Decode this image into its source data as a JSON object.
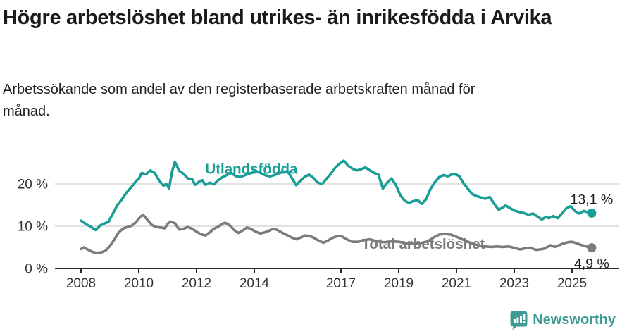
{
  "header": {
    "title": "Högre arbetslöshet bland utrikes- än inrikesfödda i Arvika",
    "subtitle": "Arbetssökande som andel av den registerbaserade arbetskraften månad för månad."
  },
  "colors": {
    "foreign_born_line": "#199E96",
    "total_line": "#7A7B7D",
    "gridline": "#D9D9D9",
    "axis": "#2B2B2B",
    "axis_text": "#333333",
    "value_label_text": "#1A1A1A",
    "brand_teal": "#3F9A94"
  },
  "chart_data": {
    "type": "line",
    "title": "",
    "xlabel": "",
    "ylabel": "",
    "x_axis": {
      "ticks": [
        2008,
        2010,
        2012,
        2014,
        2017,
        2019,
        2021,
        2023,
        2025
      ],
      "range": [
        2007.1,
        2026.6
      ]
    },
    "y_axis": {
      "ticks": [
        0,
        10,
        20
      ],
      "tick_suffix": " %",
      "range": [
        0,
        28
      ]
    },
    "grid": "horizontal",
    "legend_position": "inline-labels",
    "series": [
      {
        "name": "Utlandsfödda",
        "color": "#199E96",
        "end_label": "13,1 %",
        "end_label_position": "above",
        "points": [
          [
            2008.0,
            11.3
          ],
          [
            2008.17,
            10.5
          ],
          [
            2008.33,
            9.9
          ],
          [
            2008.5,
            9.1
          ],
          [
            2008.67,
            10.2
          ],
          [
            2008.83,
            10.7
          ],
          [
            2008.95,
            11.0
          ],
          [
            2009.08,
            12.7
          ],
          [
            2009.25,
            14.9
          ],
          [
            2009.42,
            16.4
          ],
          [
            2009.58,
            18.0
          ],
          [
            2009.75,
            19.3
          ],
          [
            2009.92,
            20.8
          ],
          [
            2010.0,
            21.2
          ],
          [
            2010.1,
            22.6
          ],
          [
            2010.25,
            22.3
          ],
          [
            2010.4,
            23.2
          ],
          [
            2010.55,
            22.6
          ],
          [
            2010.7,
            20.9
          ],
          [
            2010.85,
            19.6
          ],
          [
            2010.95,
            20.0
          ],
          [
            2011.05,
            18.9
          ],
          [
            2011.15,
            22.9
          ],
          [
            2011.25,
            25.2
          ],
          [
            2011.4,
            23.1
          ],
          [
            2011.55,
            22.4
          ],
          [
            2011.7,
            21.3
          ],
          [
            2011.85,
            21.1
          ],
          [
            2011.95,
            19.8
          ],
          [
            2012.1,
            20.6
          ],
          [
            2012.2,
            20.9
          ],
          [
            2012.3,
            19.8
          ],
          [
            2012.45,
            20.3
          ],
          [
            2012.6,
            19.9
          ],
          [
            2012.75,
            20.9
          ],
          [
            2012.9,
            21.6
          ],
          [
            2013.05,
            22.1
          ],
          [
            2013.2,
            22.6
          ],
          [
            2013.35,
            21.9
          ],
          [
            2013.5,
            21.6
          ],
          [
            2013.65,
            22.0
          ],
          [
            2013.8,
            22.4
          ],
          [
            2013.95,
            22.7
          ],
          [
            2014.1,
            22.9
          ],
          [
            2014.25,
            22.5
          ],
          [
            2014.4,
            22.0
          ],
          [
            2014.55,
            21.8
          ],
          [
            2014.7,
            22.1
          ],
          [
            2014.85,
            22.5
          ],
          [
            2015.0,
            22.8
          ],
          [
            2015.15,
            23.0
          ],
          [
            2015.3,
            21.4
          ],
          [
            2015.45,
            19.7
          ],
          [
            2015.6,
            20.8
          ],
          [
            2015.75,
            21.7
          ],
          [
            2015.9,
            22.2
          ],
          [
            2016.05,
            21.4
          ],
          [
            2016.2,
            20.3
          ],
          [
            2016.35,
            20.0
          ],
          [
            2016.5,
            21.2
          ],
          [
            2016.65,
            22.4
          ],
          [
            2016.8,
            23.8
          ],
          [
            2016.95,
            24.8
          ],
          [
            2017.1,
            25.5
          ],
          [
            2017.25,
            24.3
          ],
          [
            2017.4,
            23.6
          ],
          [
            2017.55,
            23.2
          ],
          [
            2017.7,
            23.5
          ],
          [
            2017.85,
            23.9
          ],
          [
            2018.0,
            23.2
          ],
          [
            2018.15,
            22.6
          ],
          [
            2018.3,
            22.2
          ],
          [
            2018.45,
            18.9
          ],
          [
            2018.6,
            20.3
          ],
          [
            2018.75,
            21.3
          ],
          [
            2018.9,
            19.8
          ],
          [
            2019.05,
            17.4
          ],
          [
            2019.2,
            16.1
          ],
          [
            2019.35,
            15.5
          ],
          [
            2019.5,
            15.9
          ],
          [
            2019.65,
            16.2
          ],
          [
            2019.8,
            15.3
          ],
          [
            2019.95,
            16.4
          ],
          [
            2020.1,
            18.8
          ],
          [
            2020.25,
            20.4
          ],
          [
            2020.4,
            21.6
          ],
          [
            2020.55,
            22.1
          ],
          [
            2020.7,
            21.8
          ],
          [
            2020.85,
            22.3
          ],
          [
            2021.0,
            22.2
          ],
          [
            2021.1,
            21.8
          ],
          [
            2021.25,
            20.1
          ],
          [
            2021.4,
            18.8
          ],
          [
            2021.55,
            17.6
          ],
          [
            2021.7,
            17.1
          ],
          [
            2021.85,
            16.8
          ],
          [
            2022.0,
            16.5
          ],
          [
            2022.15,
            16.9
          ],
          [
            2022.3,
            15.4
          ],
          [
            2022.45,
            13.9
          ],
          [
            2022.6,
            14.4
          ],
          [
            2022.7,
            14.9
          ],
          [
            2022.85,
            14.3
          ],
          [
            2023.0,
            13.7
          ],
          [
            2023.15,
            13.4
          ],
          [
            2023.3,
            13.2
          ],
          [
            2023.5,
            12.7
          ],
          [
            2023.65,
            13.0
          ],
          [
            2023.8,
            12.3
          ],
          [
            2023.95,
            11.6
          ],
          [
            2024.1,
            12.2
          ],
          [
            2024.2,
            11.9
          ],
          [
            2024.35,
            12.4
          ],
          [
            2024.5,
            11.9
          ],
          [
            2024.65,
            13.0
          ],
          [
            2024.8,
            14.2
          ],
          [
            2024.95,
            14.7
          ],
          [
            2025.1,
            13.6
          ],
          [
            2025.25,
            13.0
          ],
          [
            2025.4,
            13.6
          ],
          [
            2025.55,
            13.3
          ],
          [
            2025.68,
            13.1
          ]
        ]
      },
      {
        "name": "Total arbetslöshet",
        "color": "#7A7B7D",
        "end_label": "4,9 %",
        "end_label_position": "below",
        "points": [
          [
            2008.0,
            4.6
          ],
          [
            2008.1,
            5.0
          ],
          [
            2008.25,
            4.4
          ],
          [
            2008.4,
            3.9
          ],
          [
            2008.55,
            3.7
          ],
          [
            2008.7,
            3.8
          ],
          [
            2008.85,
            4.2
          ],
          [
            2009.0,
            5.3
          ],
          [
            2009.15,
            6.8
          ],
          [
            2009.3,
            8.5
          ],
          [
            2009.45,
            9.4
          ],
          [
            2009.6,
            9.8
          ],
          [
            2009.75,
            10.1
          ],
          [
            2009.9,
            10.9
          ],
          [
            2010.05,
            12.2
          ],
          [
            2010.15,
            12.7
          ],
          [
            2010.3,
            11.5
          ],
          [
            2010.45,
            10.3
          ],
          [
            2010.6,
            9.8
          ],
          [
            2010.75,
            9.7
          ],
          [
            2010.9,
            9.5
          ],
          [
            2011.0,
            10.6
          ],
          [
            2011.1,
            11.1
          ],
          [
            2011.25,
            10.7
          ],
          [
            2011.4,
            9.2
          ],
          [
            2011.55,
            9.4
          ],
          [
            2011.7,
            9.8
          ],
          [
            2011.85,
            9.4
          ],
          [
            2012.0,
            8.7
          ],
          [
            2012.15,
            8.1
          ],
          [
            2012.3,
            7.8
          ],
          [
            2012.45,
            8.5
          ],
          [
            2012.6,
            9.4
          ],
          [
            2012.75,
            9.9
          ],
          [
            2012.9,
            10.6
          ],
          [
            2013.0,
            10.8
          ],
          [
            2013.15,
            10.2
          ],
          [
            2013.3,
            9.1
          ],
          [
            2013.45,
            8.4
          ],
          [
            2013.6,
            9.0
          ],
          [
            2013.75,
            9.7
          ],
          [
            2013.9,
            9.3
          ],
          [
            2014.05,
            8.7
          ],
          [
            2014.2,
            8.3
          ],
          [
            2014.35,
            8.5
          ],
          [
            2014.5,
            8.9
          ],
          [
            2014.65,
            9.4
          ],
          [
            2014.8,
            9.1
          ],
          [
            2014.95,
            8.5
          ],
          [
            2015.1,
            8.0
          ],
          [
            2015.3,
            7.3
          ],
          [
            2015.45,
            6.9
          ],
          [
            2015.6,
            7.3
          ],
          [
            2015.75,
            7.8
          ],
          [
            2015.9,
            7.7
          ],
          [
            2016.05,
            7.3
          ],
          [
            2016.25,
            6.5
          ],
          [
            2016.4,
            6.1
          ],
          [
            2016.55,
            6.6
          ],
          [
            2016.7,
            7.2
          ],
          [
            2016.85,
            7.6
          ],
          [
            2017.0,
            7.7
          ],
          [
            2017.2,
            6.9
          ],
          [
            2017.4,
            6.3
          ],
          [
            2017.6,
            6.3
          ],
          [
            2017.8,
            6.7
          ],
          [
            2018.0,
            6.9
          ],
          [
            2018.25,
            6.4
          ],
          [
            2018.5,
            6.2
          ],
          [
            2018.75,
            6.4
          ],
          [
            2019.0,
            6.3
          ],
          [
            2019.25,
            6.0
          ],
          [
            2019.5,
            5.8
          ],
          [
            2019.75,
            6.0
          ],
          [
            2020.0,
            6.4
          ],
          [
            2020.2,
            7.3
          ],
          [
            2020.4,
            8.0
          ],
          [
            2020.6,
            8.2
          ],
          [
            2020.8,
            8.0
          ],
          [
            2021.0,
            7.5
          ],
          [
            2021.2,
            6.9
          ],
          [
            2021.4,
            6.3
          ],
          [
            2021.6,
            5.8
          ],
          [
            2021.8,
            5.4
          ],
          [
            2022.0,
            5.2
          ],
          [
            2022.2,
            5.1
          ],
          [
            2022.4,
            5.2
          ],
          [
            2022.6,
            5.1
          ],
          [
            2022.8,
            5.2
          ],
          [
            2023.0,
            4.9
          ],
          [
            2023.2,
            4.5
          ],
          [
            2023.4,
            4.8
          ],
          [
            2023.55,
            4.9
          ],
          [
            2023.75,
            4.4
          ],
          [
            2023.9,
            4.5
          ],
          [
            2024.05,
            4.7
          ],
          [
            2024.25,
            5.5
          ],
          [
            2024.4,
            5.1
          ],
          [
            2024.55,
            5.5
          ],
          [
            2024.7,
            5.9
          ],
          [
            2024.85,
            6.2
          ],
          [
            2025.0,
            6.3
          ],
          [
            2025.15,
            6.0
          ],
          [
            2025.3,
            5.6
          ],
          [
            2025.45,
            5.3
          ],
          [
            2025.55,
            5.1
          ],
          [
            2025.68,
            4.9
          ]
        ]
      }
    ],
    "series_labels": [
      {
        "text": "Utlandsfödda",
        "x": 2013.9,
        "y": 22.4,
        "color": "#199E96"
      },
      {
        "text": "Total arbetslöshet",
        "x": 2019.85,
        "y": 4.7,
        "color": "#7A7B7D"
      }
    ]
  },
  "footer": {
    "brand": "Newsworthy"
  }
}
